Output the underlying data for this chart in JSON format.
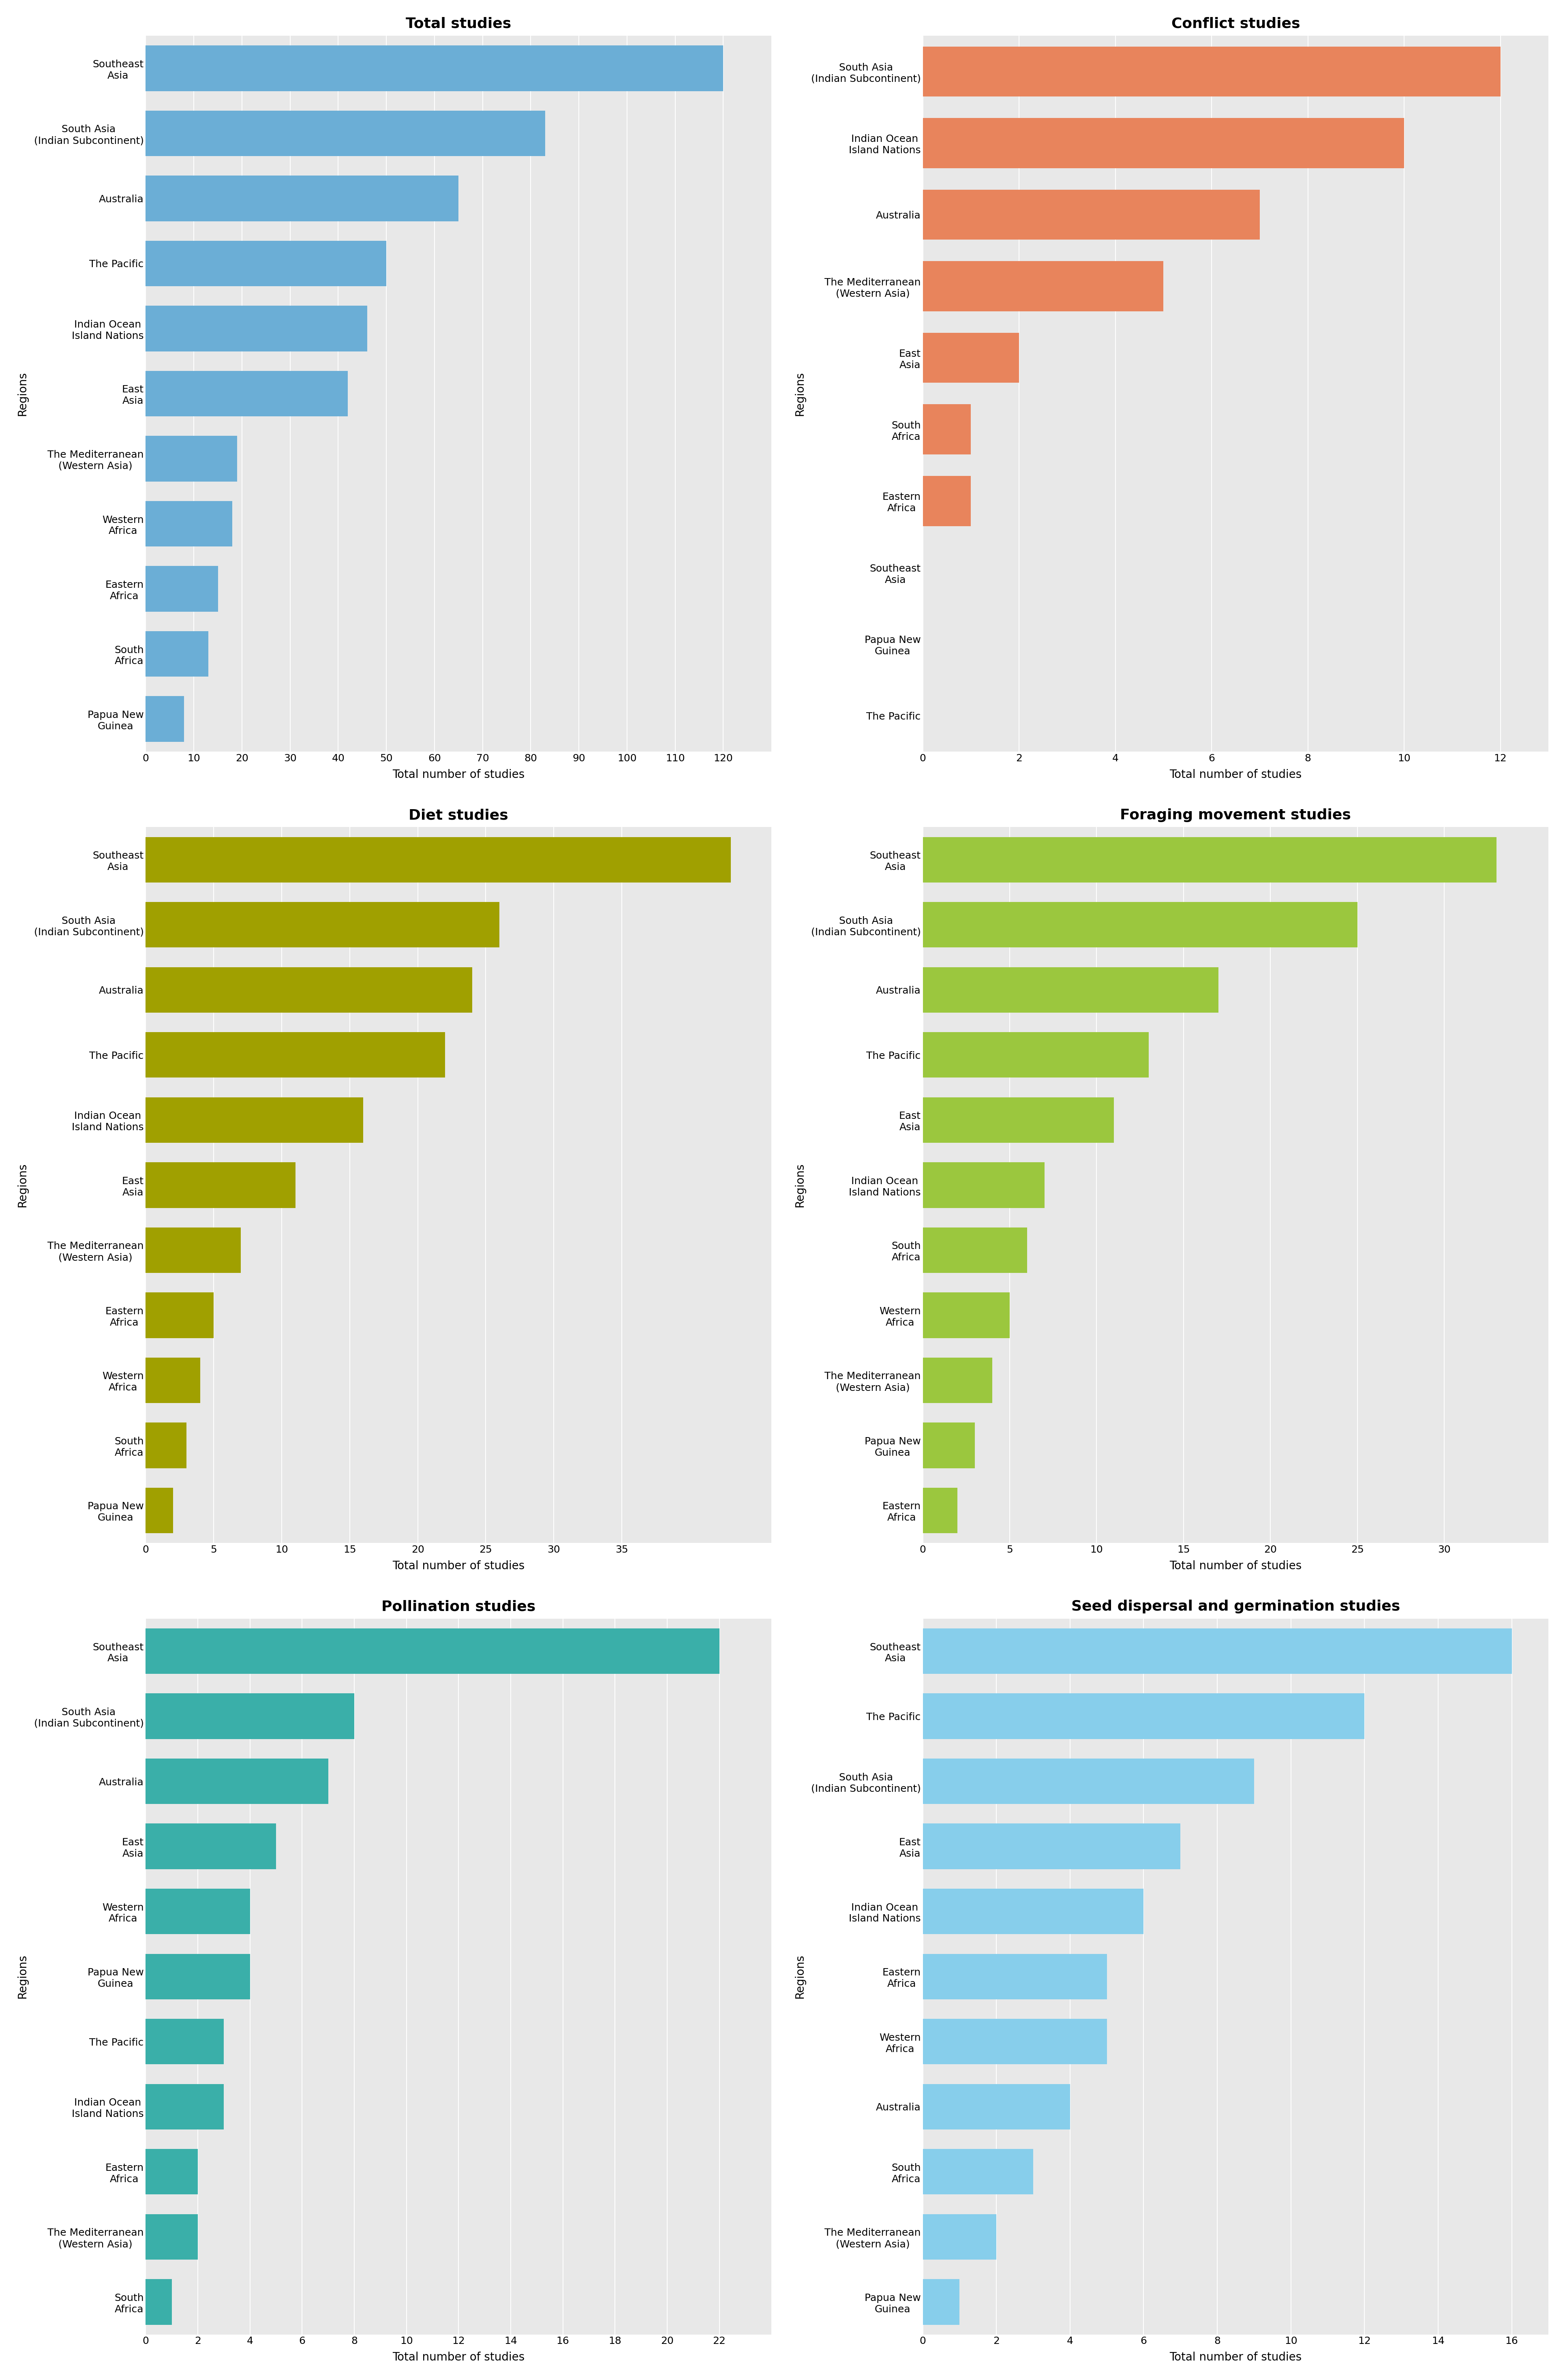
{
  "panels": [
    {
      "title": "Total studies",
      "color": "#6baed6",
      "xlabel": "Total number of studies",
      "categories": [
        "Papua New\nGuinea",
        "South\nAfrica",
        "Eastern\nAfrica",
        "Western\nAfrica",
        "The Mediterranean\n(Western Asia)",
        "East\nAsia",
        "Indian Ocean\nIsland Nations",
        "The Pacific",
        "Australia",
        "South Asia\n(Indian Subcontinent)",
        "Southeast\nAsia"
      ],
      "values": [
        8,
        13,
        15,
        18,
        19,
        42,
        46,
        50,
        65,
        83,
        120
      ],
      "xlim": [
        0,
        130
      ],
      "xticks": [
        0,
        10,
        20,
        30,
        40,
        50,
        60,
        70,
        80,
        90,
        100,
        110,
        120
      ]
    },
    {
      "title": "Conflict studies",
      "color": "#e8845c",
      "xlabel": "Total number of studies",
      "categories": [
        "The Pacific",
        "Papua New\nGuinea",
        "Southeast\nAsia",
        "Eastern\nAfrica",
        "South\nAfrica",
        "East\nAsia",
        "The Mediterranean\n(Western Asia)",
        "Australia",
        "Indian Ocean\nIsland Nations",
        "South Asia\n(Indian Subcontinent)"
      ],
      "values": [
        0,
        0,
        0,
        1,
        1,
        2,
        5,
        7,
        10,
        12
      ],
      "xlim": [
        0,
        13
      ],
      "xticks": [
        0,
        2,
        4,
        6,
        8,
        10,
        12
      ]
    },
    {
      "title": "Diet studies",
      "color": "#a0a000",
      "xlabel": "Total number of studies",
      "categories": [
        "Papua New\nGuinea",
        "South\nAfrica",
        "Western\nAfrica",
        "Eastern\nAfrica",
        "The Mediterranean\n(Western Asia)",
        "East\nAsia",
        "Indian Ocean\nIsland Nations",
        "The Pacific",
        "Australia",
        "South Asia\n(Indian Subcontinent)",
        "Southeast\nAsia"
      ],
      "values": [
        2,
        3,
        4,
        5,
        7,
        11,
        16,
        22,
        24,
        26,
        43
      ],
      "xlim": [
        0,
        46
      ],
      "xticks": [
        0,
        5,
        10,
        15,
        20,
        25,
        30,
        35
      ]
    },
    {
      "title": "Foraging movement studies",
      "color": "#9bc73e",
      "xlabel": "Total number of studies",
      "categories": [
        "Eastern\nAfrica",
        "Papua New\nGuinea",
        "The Mediterranean\n(Western Asia)",
        "Western\nAfrica",
        "South\nAfrica",
        "Indian Ocean\nIsland Nations",
        "East\nAsia",
        "The Pacific",
        "Australia",
        "South Asia\n(Indian Subcontinent)",
        "Southeast\nAsia"
      ],
      "values": [
        2,
        3,
        4,
        5,
        6,
        7,
        11,
        13,
        17,
        25,
        33
      ],
      "xlim": [
        0,
        36
      ],
      "xticks": [
        0,
        5,
        10,
        15,
        20,
        25,
        30
      ]
    },
    {
      "title": "Pollination studies",
      "color": "#3aafa9",
      "xlabel": "Total number of studies",
      "categories": [
        "South\nAfrica",
        "The Mediterranean\n(Western Asia)",
        "Eastern\nAfrica",
        "Indian Ocean\nIsland Nations",
        "The Pacific",
        "Papua New\nGuinea",
        "Western\nAfrica",
        "East\nAsia",
        "Australia",
        "South Asia\n(Indian Subcontinent)",
        "Southeast\nAsia"
      ],
      "values": [
        1,
        2,
        2,
        3,
        3,
        4,
        4,
        5,
        7,
        8,
        22
      ],
      "xlim": [
        0,
        24
      ],
      "xticks": [
        0,
        2,
        4,
        6,
        8,
        10,
        12,
        14,
        16,
        18,
        20,
        22
      ]
    },
    {
      "title": "Seed dispersal and germination studies",
      "color": "#87ceeb",
      "xlabel": "Total number of studies",
      "categories": [
        "Papua New\nGuinea",
        "The Mediterranean\n(Western Asia)",
        "South\nAfrica",
        "Australia",
        "Western\nAfrica",
        "Eastern\nAfrica",
        "Indian Ocean\nIsland Nations",
        "East\nAsia",
        "South Asia\n(Indian Subcontinent)",
        "The Pacific",
        "Southeast\nAsia"
      ],
      "values": [
        1,
        2,
        3,
        4,
        5,
        5,
        6,
        7,
        9,
        12,
        16
      ],
      "xlim": [
        0,
        17
      ],
      "xticks": [
        0,
        2,
        4,
        6,
        8,
        10,
        12,
        14,
        16
      ]
    }
  ],
  "background_color": "#e8e8e8",
  "grid_color": "white",
  "title_fontsize": 26,
  "label_fontsize": 20,
  "tick_fontsize": 18,
  "bar_height": 0.7,
  "ylabel": "Regions"
}
